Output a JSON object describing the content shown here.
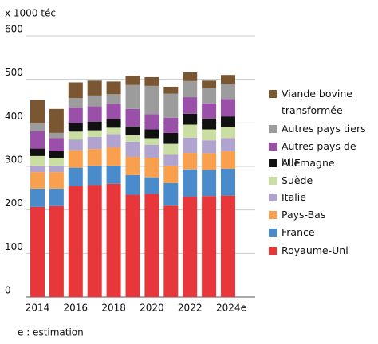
{
  "chart_data": {
    "type": "bar",
    "stacked": true,
    "y_label": "x 1000 téc",
    "note": "e : estimation",
    "categories": [
      "2014",
      null,
      "2016",
      null,
      "2018",
      null,
      "2020",
      null,
      "2022",
      null,
      "2024e"
    ],
    "ylim": [
      0,
      600
    ],
    "yticks": [
      0,
      100,
      200,
      300,
      400,
      500,
      600
    ],
    "grid": true,
    "series": [
      {
        "name": "Royaume-Uni",
        "color": "#e8373a",
        "values": [
          207,
          209,
          255,
          257,
          260,
          235,
          237,
          210,
          230,
          232,
          233
        ]
      },
      {
        "name": "France",
        "color": "#4a8ccb",
        "values": [
          42,
          40,
          42,
          45,
          42,
          45,
          38,
          52,
          63,
          60,
          62
        ]
      },
      {
        "name": "Pays-Bas",
        "color": "#f9a04e",
        "values": [
          38,
          38,
          40,
          38,
          42,
          42,
          45,
          40,
          38,
          38,
          40
        ]
      },
      {
        "name": "Italie",
        "color": "#b0a3cf",
        "values": [
          15,
          15,
          25,
          28,
          30,
          35,
          30,
          25,
          35,
          30,
          30
        ]
      },
      {
        "name": "Suède",
        "color": "#c9dea0",
        "values": [
          22,
          18,
          18,
          15,
          15,
          15,
          15,
          25,
          30,
          25,
          25
        ]
      },
      {
        "name": "Allemagne",
        "color": "#111111",
        "values": [
          17,
          15,
          20,
          20,
          20,
          20,
          20,
          25,
          25,
          25,
          25
        ]
      },
      {
        "name": "Autres pays de l'UE",
        "color": "#9a4fa8",
        "values": [
          40,
          30,
          35,
          35,
          35,
          40,
          35,
          35,
          38,
          35,
          40
        ]
      },
      {
        "name": "Autres pays tiers",
        "color": "#9c9c9c",
        "values": [
          18,
          12,
          22,
          25,
          22,
          55,
          65,
          55,
          37,
          35,
          35
        ]
      },
      {
        "name": "Viande bovine transformée",
        "color": "#7b5633",
        "values": [
          53,
          55,
          36,
          34,
          29,
          21,
          20,
          16,
          20,
          17,
          20
        ]
      }
    ]
  }
}
